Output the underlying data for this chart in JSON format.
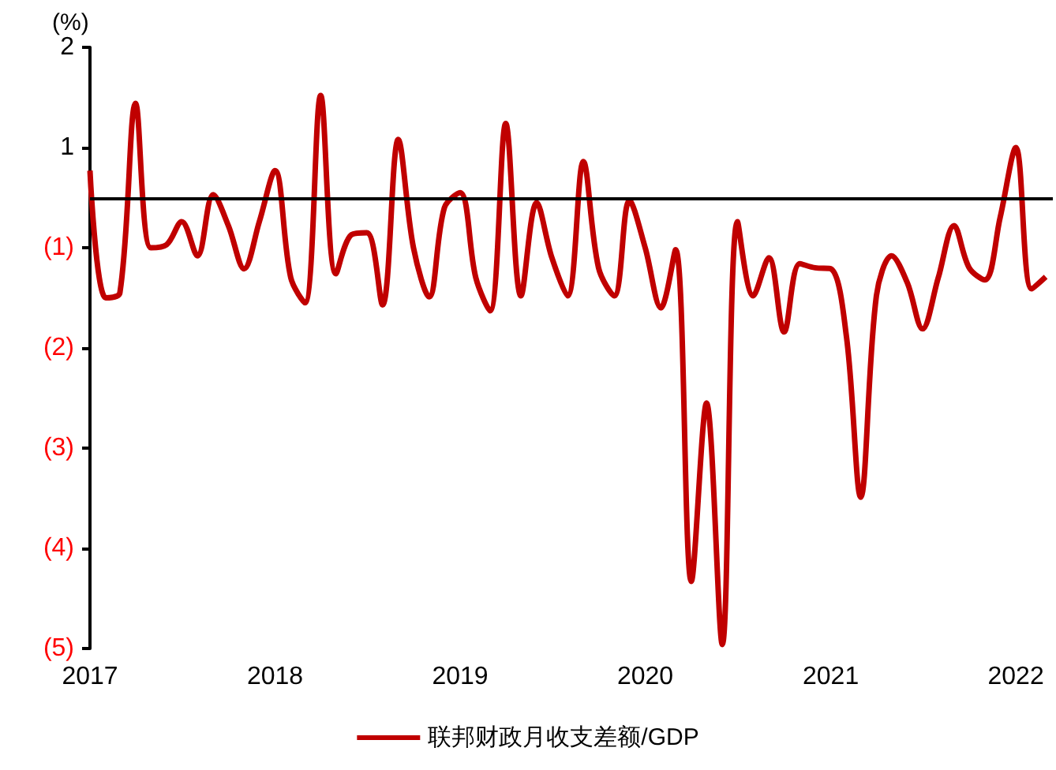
{
  "chart_data": {
    "type": "line",
    "ylabel": "(%)",
    "x": [
      "2017-01",
      "2017-02",
      "2017-03",
      "2017-04",
      "2017-05",
      "2017-06",
      "2017-07",
      "2017-08",
      "2017-09",
      "2017-10",
      "2017-11",
      "2017-12",
      "2018-01",
      "2018-02",
      "2018-03",
      "2018-04",
      "2018-05",
      "2018-06",
      "2018-07",
      "2018-08",
      "2018-09",
      "2018-10",
      "2018-11",
      "2018-12",
      "2019-01",
      "2019-02",
      "2019-03",
      "2019-04",
      "2019-05",
      "2019-06",
      "2019-07",
      "2019-08",
      "2019-09",
      "2019-10",
      "2019-11",
      "2019-12",
      "2020-01",
      "2020-02",
      "2020-03",
      "2020-04",
      "2020-05",
      "2020-06",
      "2020-07",
      "2020-08",
      "2020-09",
      "2020-10",
      "2020-11",
      "2020-12",
      "2021-01",
      "2021-02",
      "2021-03",
      "2021-04",
      "2021-05",
      "2021-06",
      "2021-07",
      "2021-08",
      "2021-09",
      "2021-10",
      "2021-11",
      "2021-12",
      "2022-01",
      "2022-02",
      "2022-03"
    ],
    "series": [
      {
        "name": "联邦财政月收支差额/GDP",
        "color": "#c00000",
        "values": [
          0.27,
          -1.0,
          -0.95,
          0.94,
          -0.5,
          -0.47,
          -0.24,
          -0.58,
          0.03,
          -0.28,
          -0.71,
          -0.24,
          0.27,
          -0.8,
          -1.05,
          1.02,
          -0.76,
          -0.37,
          -0.35,
          -1.07,
          0.58,
          -0.5,
          -0.99,
          -0.1,
          0.05,
          -0.8,
          -1.13,
          0.74,
          -0.98,
          -0.05,
          -0.6,
          -0.98,
          0.36,
          -0.7,
          -0.98,
          -0.03,
          -0.5,
          -1.1,
          -0.52,
          -3.83,
          -2.05,
          -4.46,
          -0.24,
          -0.98,
          -0.6,
          -1.34,
          -0.66,
          -0.7,
          -0.71,
          -1.39,
          -2.99,
          -0.98,
          -0.58,
          -0.85,
          -1.31,
          -0.8,
          -0.28,
          -0.7,
          -0.82,
          -0.2,
          0.5,
          -0.91,
          -0.79
        ]
      }
    ],
    "xlim": [
      "2017-01",
      "2022-03-15"
    ],
    "xticks": [
      "2017",
      "2018",
      "2019",
      "2020",
      "2021",
      "2022"
    ],
    "ylim": [
      -4.5,
      1.5
    ],
    "yticks": [
      {
        "value": 1.5,
        "label": "2"
      },
      {
        "value": 0.5,
        "label": "1"
      },
      {
        "value": -0.5,
        "label": "(1)"
      },
      {
        "value": -1.5,
        "label": "(2)"
      },
      {
        "value": -2.5,
        "label": "(3)"
      },
      {
        "value": -3.5,
        "label": "(4)"
      },
      {
        "value": -4.5,
        "label": "(5)"
      }
    ],
    "grid": false,
    "legend": "bottom",
    "marker": "none",
    "line_style": "solid"
  }
}
